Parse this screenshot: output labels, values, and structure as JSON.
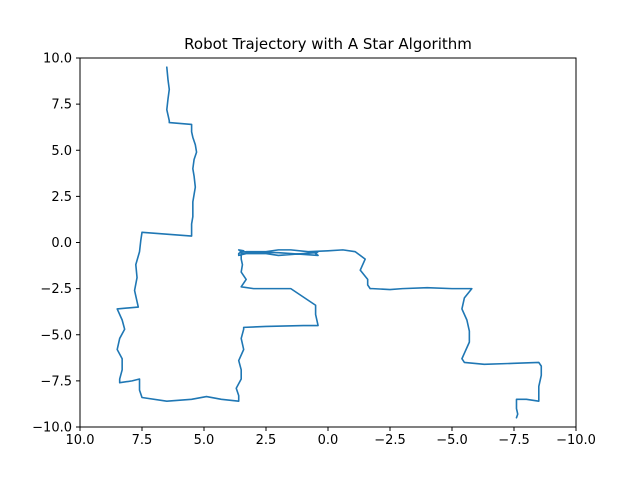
{
  "chart_data": {
    "type": "line",
    "title": "Robot Trajectory with A Star Algorithm",
    "xlabel": "",
    "ylabel": "",
    "xlim": [
      10,
      -10
    ],
    "ylim": [
      -10,
      10
    ],
    "x_inverted": true,
    "grid": false,
    "legend": "none",
    "line_color": "#1f77b4",
    "xticks": [
      10.0,
      7.5,
      5.0,
      2.5,
      0.0,
      -2.5,
      -5.0,
      -7.5,
      -10.0
    ],
    "xtick_labels": [
      "10.0",
      "7.5",
      "5.0",
      "2.5",
      "0.0",
      "−2.5",
      "−5.0",
      "−7.5",
      "−10.0"
    ],
    "yticks": [
      10.0,
      7.5,
      5.0,
      2.5,
      0.0,
      -2.5,
      -5.0,
      -7.5,
      -10.0
    ],
    "ytick_labels": [
      "10.0",
      "7.5",
      "5.0",
      "2.5",
      "0.0",
      "−2.5",
      "−5.0",
      "−7.5",
      "−10.0"
    ],
    "series": [
      {
        "x": [
          6.5,
          6.45,
          6.4,
          6.45,
          6.5,
          6.45,
          6.4,
          6.4,
          5.5,
          5.5,
          5.45,
          5.35,
          5.3,
          5.4,
          5.45,
          5.4,
          5.35,
          5.4,
          5.45,
          5.45,
          5.45,
          5.5,
          5.5,
          5.5,
          7.5,
          7.55,
          7.6,
          7.75,
          7.7,
          7.8,
          7.7,
          7.65,
          8.5,
          8.3,
          8.2,
          8.4,
          8.5,
          8.3,
          8.3,
          8.4,
          8.4,
          7.9,
          7.6,
          7.6,
          7.5,
          6.5,
          5.5,
          4.9,
          4.3,
          3.6,
          3.6,
          3.7,
          3.5,
          3.5,
          3.6,
          3.4,
          3.5,
          3.4,
          3.4,
          2.5,
          1.0,
          0.4,
          0.5,
          0.5,
          1.5,
          3.0,
          3.0,
          3.5,
          3.3,
          3.5,
          3.45,
          3.5,
          3.5,
          2.0,
          0.4,
          0.5,
          0.4,
          0.5,
          2.0,
          2.5,
          3.5,
          3.5,
          3.4,
          3.6,
          3.5,
          3.6,
          3.6,
          3.3,
          3.3,
          2.5,
          2.0,
          1.5,
          0.8,
          0.0,
          -0.6,
          -1.1,
          -1.5,
          -1.3,
          -1.6,
          -1.6,
          -1.7,
          -1.8,
          -2.5,
          -3.0,
          -4.0,
          -5.0,
          -5.8,
          -5.5,
          -5.4,
          -5.6,
          -5.7,
          -5.7,
          -5.5,
          -5.4,
          -5.5,
          -6.3,
          -7.5,
          -8.5,
          -8.6,
          -8.6,
          -8.5,
          -8.5,
          -8.0,
          -7.6,
          -7.6,
          -7.65,
          -7.6
        ],
        "y": [
          9.5,
          8.8,
          8.3,
          7.8,
          7.2,
          6.9,
          6.6,
          6.5,
          6.4,
          6.0,
          5.7,
          5.3,
          4.9,
          4.5,
          4.0,
          3.6,
          3.0,
          2.6,
          2.2,
          1.8,
          1.4,
          1.0,
          0.6,
          0.35,
          0.55,
          0.1,
          -0.5,
          -1.2,
          -1.9,
          -2.6,
          -3.2,
          -3.5,
          -3.6,
          -4.2,
          -4.7,
          -5.2,
          -5.8,
          -6.3,
          -6.9,
          -7.4,
          -7.6,
          -7.5,
          -7.4,
          -8.0,
          -8.4,
          -8.6,
          -8.5,
          -8.35,
          -8.5,
          -8.6,
          -8.3,
          -7.9,
          -7.4,
          -6.9,
          -6.4,
          -5.8,
          -5.2,
          -4.7,
          -4.6,
          -4.55,
          -4.5,
          -4.5,
          -3.9,
          -3.4,
          -2.5,
          -2.5,
          -2.5,
          -2.4,
          -2.0,
          -1.6,
          -1.2,
          -0.9,
          -0.5,
          -0.55,
          -0.7,
          -0.6,
          -0.5,
          -0.55,
          -0.7,
          -0.6,
          -0.6,
          -0.55,
          -0.45,
          -0.4,
          -0.5,
          -0.6,
          -0.7,
          -0.6,
          -0.5,
          -0.5,
          -0.4,
          -0.4,
          -0.5,
          -0.45,
          -0.4,
          -0.5,
          -0.9,
          -1.5,
          -2.0,
          -2.3,
          -2.5,
          -2.5,
          -2.55,
          -2.5,
          -2.45,
          -2.5,
          -2.5,
          -3.0,
          -3.6,
          -4.2,
          -4.8,
          -5.4,
          -6.0,
          -6.3,
          -6.5,
          -6.6,
          -6.55,
          -6.5,
          -6.7,
          -7.2,
          -7.8,
          -8.6,
          -8.5,
          -8.5,
          -9.0,
          -9.3,
          -9.5
        ]
      }
    ]
  }
}
